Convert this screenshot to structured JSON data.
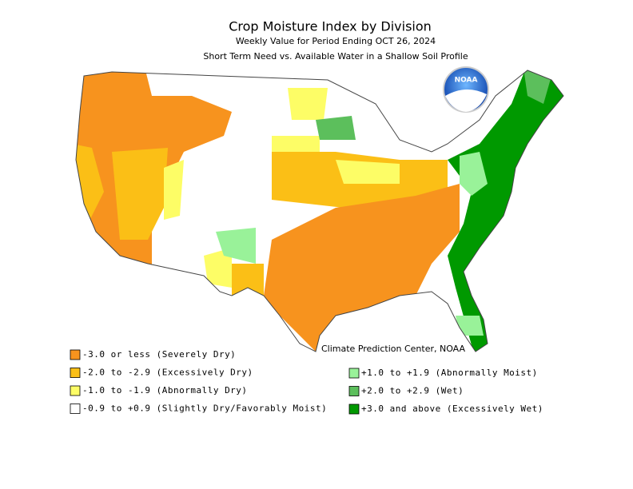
{
  "header": {
    "title": "Crop Moisture Index by Division",
    "subtitle": "Weekly Value for Period Ending OCT 26, 2024",
    "description": "Short Term Need vs. Available Water in a Shallow Soil Profile"
  },
  "logo": "NOAA",
  "credit": "Climate Prediction Center, NOAA",
  "legend": {
    "left": [
      {
        "label": "-3.0 or less (Severely Dry)",
        "color": "#f7931e"
      },
      {
        "label": "-2.0 to -2.9 (Excessively Dry)",
        "color": "#fbbf16"
      },
      {
        "label": "-1.0 to -1.9 (Abnormally Dry)",
        "color": "#fdfd66"
      },
      {
        "label": "-0.9 to +0.9 (Slightly Dry/Favorably Moist)",
        "color": "#ffffff"
      }
    ],
    "right": [
      {
        "label": "+1.0 to +1.9 (Abnormally Moist)",
        "color": "#99f299"
      },
      {
        "label": "+2.0 to +2.9 (Wet)",
        "color": "#5cbf5c"
      },
      {
        "label": "+3.0 and above (Excessively Wet)",
        "color": "#009900"
      }
    ]
  }
}
